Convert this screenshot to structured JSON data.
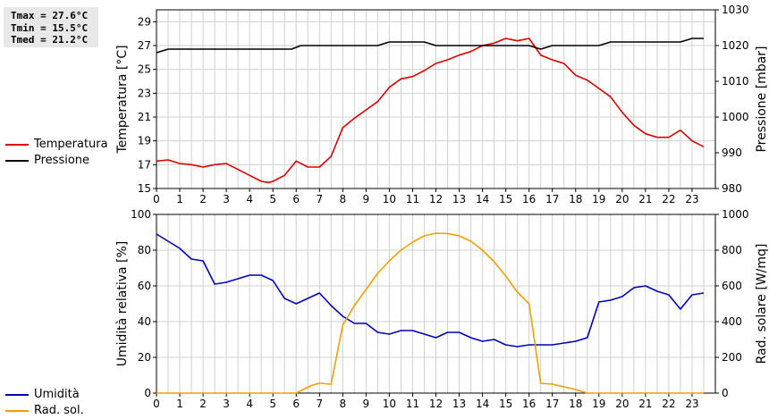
{
  "stats": {
    "tmax": "Tmax = 27.6°C",
    "tmin": "Tmin = 15.5°C",
    "tmed": "Tmed = 21.2°C"
  },
  "legends": {
    "top": [
      {
        "name": "Temperatura",
        "color": "#dd0000"
      },
      {
        "name": "Pressione",
        "color": "#000000"
      }
    ],
    "bottom": [
      {
        "name": "Umidità",
        "color": "#0000bb"
      },
      {
        "name": "Rad. sol.",
        "color": "#f0a000"
      }
    ]
  },
  "chart_data": [
    {
      "type": "line",
      "xlabel": "",
      "xlim": [
        0,
        24
      ],
      "xticks": [
        0,
        1,
        2,
        3,
        4,
        5,
        6,
        7,
        8,
        9,
        10,
        11,
        12,
        13,
        14,
        15,
        16,
        17,
        18,
        19,
        20,
        21,
        22,
        23
      ],
      "ylabel": "Temperatura [°C]",
      "ylim": [
        15,
        30
      ],
      "yticks": [
        15,
        17,
        19,
        21,
        23,
        25,
        27,
        29
      ],
      "y2label": "Pressione [mbar]",
      "y2lim": [
        980,
        1030
      ],
      "y2ticks": [
        980,
        990,
        1000,
        1010,
        1020,
        1030
      ],
      "grid": true,
      "series": [
        {
          "name": "Temperatura",
          "axis": "left",
          "color": "#dd0000",
          "x": [
            0,
            0.5,
            1,
            1.5,
            2,
            2.5,
            3,
            3.5,
            4,
            4.5,
            4.8,
            5,
            5.5,
            6,
            6.5,
            7,
            7.5,
            8,
            8.5,
            9,
            9.5,
            10,
            10.5,
            11,
            11.5,
            12,
            12.5,
            13,
            13.5,
            14,
            14.5,
            15,
            15.5,
            16,
            16.5,
            17,
            17.5,
            18,
            18.5,
            19,
            19.5,
            20,
            20.5,
            21,
            21.5,
            22,
            22.5,
            23,
            23.5
          ],
          "y": [
            17.3,
            17.4,
            17.1,
            17.0,
            16.8,
            17.0,
            17.1,
            16.6,
            16.1,
            15.6,
            15.5,
            15.6,
            16.1,
            17.3,
            16.8,
            16.8,
            17.7,
            20.1,
            20.9,
            21.6,
            22.3,
            23.5,
            24.2,
            24.4,
            24.9,
            25.5,
            25.8,
            26.2,
            26.5,
            27.0,
            27.2,
            27.6,
            27.4,
            27.6,
            26.2,
            25.8,
            25.5,
            24.5,
            24.1,
            23.4,
            22.7,
            21.4,
            20.3,
            19.6,
            19.3,
            19.3,
            19.9,
            19.0,
            18.5
          ]
        },
        {
          "name": "Pressione",
          "axis": "right",
          "color": "#000000",
          "x": [
            0,
            0.5,
            1,
            2,
            3,
            4,
            5,
            5.8,
            6.2,
            7,
            8,
            9,
            9.5,
            10,
            11,
            11.5,
            12,
            13,
            14,
            15,
            16,
            16.5,
            17,
            18,
            19,
            19.5,
            20,
            21,
            22,
            22.5,
            23,
            23.5
          ],
          "y": [
            1018,
            1019,
            1019,
            1019,
            1019,
            1019,
            1019,
            1019,
            1020,
            1020,
            1020,
            1020,
            1020,
            1021,
            1021,
            1021,
            1020,
            1020,
            1020,
            1020,
            1020,
            1019,
            1020,
            1020,
            1020,
            1021,
            1021,
            1021,
            1021,
            1021,
            1022,
            1022
          ]
        }
      ]
    },
    {
      "type": "line",
      "xlabel": "",
      "xlim": [
        0,
        24
      ],
      "xticks": [
        0,
        1,
        2,
        3,
        4,
        5,
        6,
        7,
        8,
        9,
        10,
        11,
        12,
        13,
        14,
        15,
        16,
        17,
        18,
        19,
        20,
        21,
        22,
        23
      ],
      "ylabel": "Umidità relativa [%]",
      "ylim": [
        0,
        100
      ],
      "yticks": [
        0,
        20,
        40,
        60,
        80,
        100
      ],
      "y2label": "Rad. solare [W/mq]",
      "y2lim": [
        0,
        1000
      ],
      "y2ticks": [
        0,
        200,
        400,
        600,
        800,
        1000
      ],
      "grid": true,
      "series": [
        {
          "name": "Umidità",
          "axis": "left",
          "color": "#0000bb",
          "x": [
            0,
            0.5,
            1,
            1.5,
            2,
            2.5,
            3,
            3.5,
            4,
            4.5,
            5,
            5.5,
            6,
            6.5,
            7,
            7.5,
            8,
            8.5,
            9,
            9.5,
            10,
            10.5,
            11,
            11.5,
            12,
            12.5,
            13,
            13.5,
            14,
            14.5,
            15,
            15.5,
            16,
            16.5,
            17,
            17.5,
            18,
            18.5,
            19,
            19.5,
            20,
            20.5,
            21,
            21.5,
            22,
            22.5,
            23,
            23.5
          ],
          "y": [
            89,
            85,
            81,
            75,
            74,
            61,
            62,
            64,
            66,
            66,
            63,
            53,
            50,
            53,
            56,
            49,
            43,
            39,
            39,
            34,
            33,
            35,
            35,
            33,
            31,
            34,
            34,
            31,
            29,
            30,
            27,
            26,
            27,
            27,
            27,
            28,
            29,
            31,
            51,
            52,
            54,
            59,
            60,
            57,
            55,
            47,
            55,
            56
          ]
        },
        {
          "name": "Rad. sol.",
          "axis": "right",
          "color": "#f0a000",
          "x": [
            0,
            1,
            2,
            3,
            4,
            5,
            6,
            6.3,
            6.7,
            7,
            7.5,
            8,
            8.5,
            9,
            9.5,
            10,
            10.5,
            11,
            11.5,
            12,
            12.5,
            13,
            13.5,
            14,
            14.5,
            15,
            15.5,
            16,
            16.5,
            17,
            17.5,
            18,
            18.5,
            19,
            20,
            21,
            22,
            23,
            23.5
          ],
          "y": [
            0,
            0,
            0,
            0,
            0,
            0,
            0,
            20,
            45,
            55,
            50,
            380,
            490,
            580,
            670,
            740,
            800,
            845,
            880,
            895,
            893,
            880,
            850,
            800,
            735,
            655,
            565,
            500,
            55,
            50,
            35,
            20,
            0,
            0,
            0,
            0,
            0,
            0,
            0
          ]
        }
      ]
    }
  ]
}
